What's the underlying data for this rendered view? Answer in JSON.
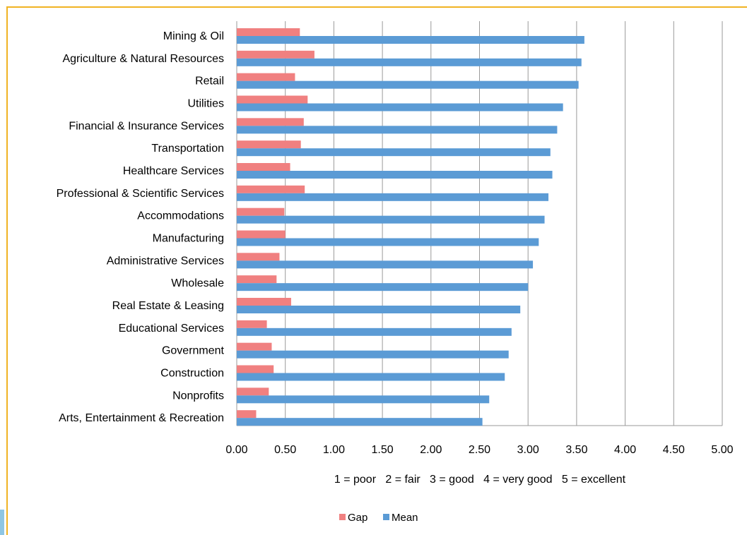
{
  "chart_data": {
    "type": "bar",
    "orientation": "horizontal",
    "categories": [
      "Mining & Oil",
      "Agriculture & Natural Resources",
      "Retail",
      "Utilities",
      "Financial & Insurance Services",
      "Transportation",
      "Healthcare Services",
      "Professional & Scientific Services",
      "Accommodations",
      "Manufacturing",
      "Administrative Services",
      "Wholesale",
      "Real Estate & Leasing",
      "Educational Services",
      "Government",
      "Construction",
      "Nonprofits",
      "Arts, Entertainment & Recreation"
    ],
    "series": [
      {
        "name": "Gap",
        "color": "#f08080",
        "values": [
          0.65,
          0.8,
          0.6,
          0.73,
          0.69,
          0.66,
          0.55,
          0.7,
          0.49,
          0.5,
          0.44,
          0.41,
          0.56,
          0.31,
          0.36,
          0.38,
          0.33,
          0.2
        ]
      },
      {
        "name": "Mean",
        "color": "#5b9bd5",
        "values": [
          3.58,
          3.55,
          3.52,
          3.36,
          3.3,
          3.23,
          3.25,
          3.21,
          3.17,
          3.11,
          3.05,
          3.0,
          2.92,
          2.83,
          2.8,
          2.76,
          2.6,
          2.53
        ]
      }
    ],
    "xlim": [
      0,
      5
    ],
    "xticks": [
      "0.00",
      "0.50",
      "1.00",
      "1.50",
      "2.00",
      "2.50",
      "3.00",
      "3.50",
      "4.00",
      "4.50",
      "5.00"
    ],
    "gridlines": "vertical",
    "legend_position": "bottom"
  },
  "scale_note": "1 = poor   2 = fair   3 = good   4 = very good   5 = excellent"
}
